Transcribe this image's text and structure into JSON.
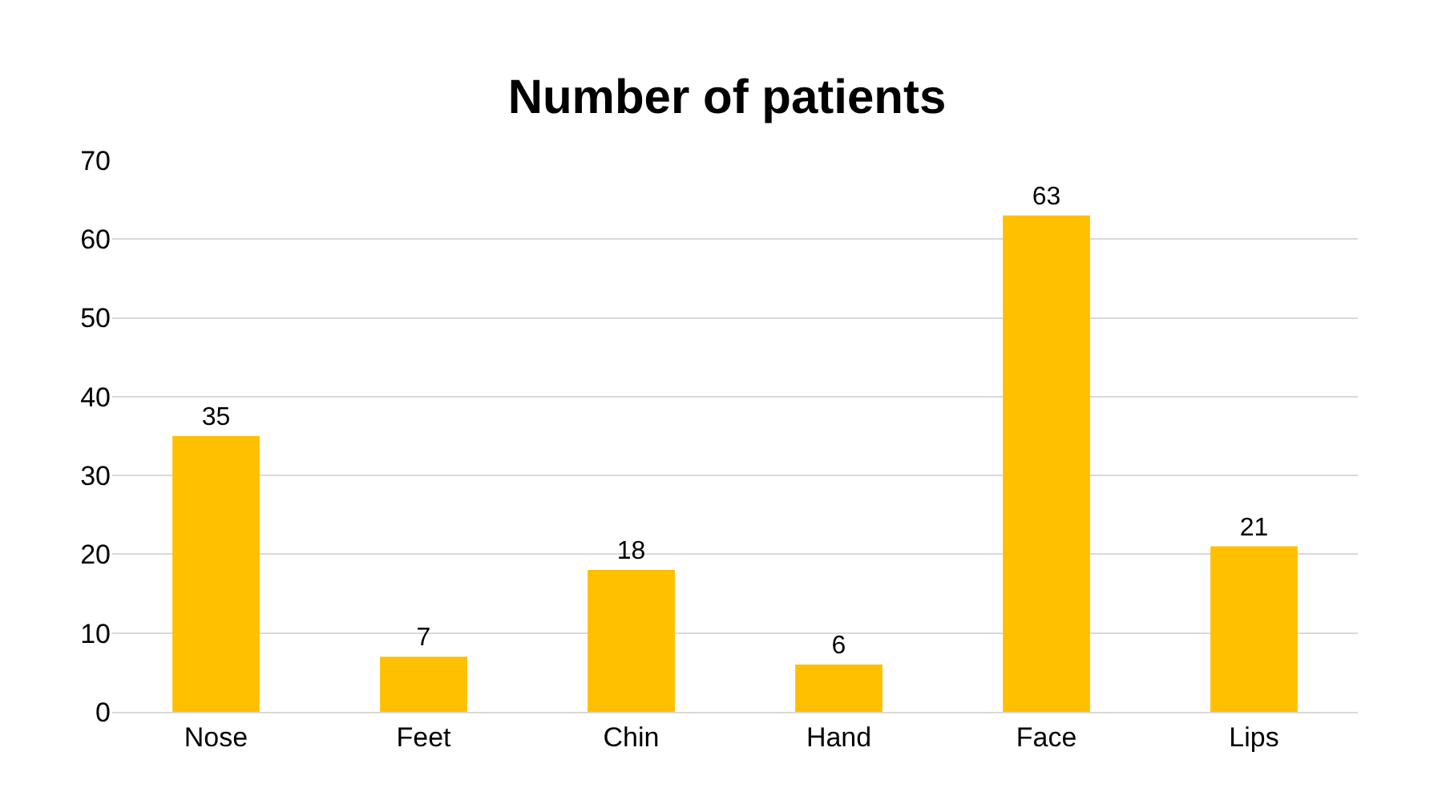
{
  "chart_data": {
    "type": "bar",
    "title": "Number of patients",
    "categories": [
      "Nose",
      "Feet",
      "Chin",
      "Hand",
      "Face",
      "Lips"
    ],
    "values": [
      35,
      7,
      18,
      6,
      63,
      21
    ],
    "color": "#ffc000",
    "ylim": [
      0,
      70
    ],
    "yticks": [
      0,
      10,
      20,
      30,
      40,
      50,
      60,
      70
    ],
    "grid": "y",
    "data_labels": true
  }
}
